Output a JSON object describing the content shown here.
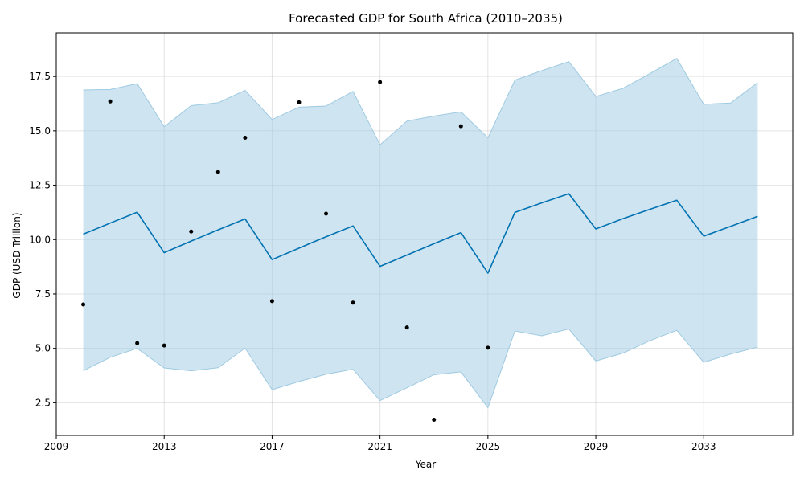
{
  "chart_data": {
    "type": "line",
    "title": "Forecasted GDP for South Africa (2010–2035)",
    "xlabel": "Year",
    "ylabel": "GDP (USD Trillion)",
    "xlim": [
      2009,
      2036.3
    ],
    "ylim": [
      1.0,
      19.5
    ],
    "x_ticks": [
      2009,
      2013,
      2017,
      2021,
      2025,
      2029,
      2033
    ],
    "y_ticks": [
      2.5,
      5.0,
      7.5,
      10.0,
      12.5,
      15.0,
      17.5
    ],
    "grid": true,
    "colors": {
      "forecast_line": "#0072b2",
      "band_fill": "#a6cde6",
      "band_edge": "#9ecae1",
      "observed": "#000000"
    },
    "forecast": {
      "x": [
        2010,
        2011,
        2012,
        2013,
        2014,
        2015,
        2016,
        2017,
        2018,
        2019,
        2020,
        2021,
        2022,
        2023,
        2024,
        2025,
        2026,
        2027,
        2028,
        2029,
        2030,
        2031,
        2032,
        2033,
        2034,
        2035
      ],
      "y": [
        10.25,
        10.76,
        11.26,
        9.4,
        9.93,
        10.45,
        10.95,
        9.08,
        9.61,
        10.13,
        10.63,
        8.77,
        9.29,
        9.81,
        10.32,
        8.46,
        11.25,
        11.69,
        12.11,
        10.49,
        10.96,
        11.39,
        11.81,
        10.16,
        10.61,
        11.07
      ],
      "lower": [
        3.97,
        4.59,
        5.0,
        4.1,
        3.97,
        4.11,
        5.01,
        3.1,
        3.48,
        3.81,
        4.04,
        2.6,
        3.19,
        3.79,
        3.92,
        2.27,
        5.8,
        5.58,
        5.89,
        4.42,
        4.78,
        5.35,
        5.83,
        4.36,
        4.74,
        5.06
      ],
      "upper": [
        16.88,
        16.9,
        17.17,
        15.19,
        16.16,
        16.29,
        16.86,
        15.52,
        16.09,
        16.14,
        16.81,
        14.36,
        15.45,
        15.68,
        15.87,
        14.68,
        17.33,
        17.77,
        18.18,
        16.58,
        16.95,
        17.63,
        18.33,
        16.22,
        16.28,
        17.22
      ]
    },
    "observed": {
      "x": [
        2010,
        2011,
        2012,
        2013,
        2014,
        2015,
        2016,
        2017,
        2018,
        2019,
        2020,
        2021,
        2022,
        2023,
        2024,
        2025
      ],
      "y": [
        7.02,
        16.35,
        5.24,
        5.13,
        10.37,
        13.11,
        14.68,
        7.17,
        16.31,
        11.19,
        7.1,
        17.24,
        5.96,
        1.72,
        15.21,
        5.03
      ]
    }
  }
}
